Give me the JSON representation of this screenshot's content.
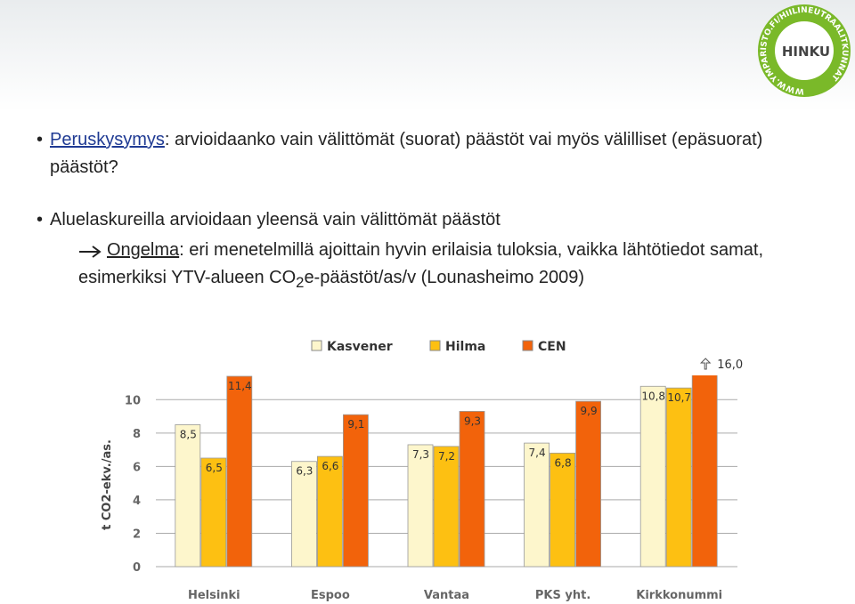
{
  "logo": {
    "name": "HINKU",
    "ring": "WWW.YMPARISTO.FI/HIILINEUTRAALITKUNNAT"
  },
  "bullet1": {
    "term": "Peruskysymys",
    "text": ": arvioidaanko vain välittömät (suorat) päästöt vai myös välilliset (epäsuorat) päästöt?"
  },
  "bullet2": {
    "text": "Aluelaskureilla arvioidaan yleensä vain välittömät päästöt",
    "term": "Ongelma",
    "text2": ": eri menetelmillä ajoittain hyvin erilaisia tuloksia, vaikka lähtötiedot samat, esimerkiksi YTV-alueen CO",
    "sub": "2",
    "text3": "e-päästöt/as/v (Lounasheimo 2009)"
  },
  "chart_data": {
    "type": "bar",
    "categories": [
      "Helsinki",
      "Espoo",
      "Vantaa",
      "PKS yht.",
      "Kirkkonummi"
    ],
    "series": [
      {
        "name": "Kasvener",
        "color": "#fdf6cc",
        "values": [
          8.5,
          6.3,
          7.3,
          7.4,
          10.8
        ],
        "value_labels": [
          "8,5",
          "6,3",
          "7,3",
          "7,4",
          "10,8"
        ]
      },
      {
        "name": "Hilma",
        "color": "#fdc012",
        "values": [
          6.5,
          6.6,
          7.2,
          6.8,
          10.7
        ],
        "value_labels": [
          "6,5",
          "6,6",
          "7,2",
          "6,8",
          "10,7"
        ]
      },
      {
        "name": "CEN",
        "color": "#f2630b",
        "values": [
          11.4,
          9.1,
          9.3,
          9.9,
          16.0
        ],
        "value_labels": [
          "11,4",
          "9,1",
          "9,3",
          "9,9",
          "16,0"
        ]
      }
    ],
    "y_label": "t CO2-ekv./as.",
    "ylim": [
      0,
      11.4
    ],
    "yticks": [
      0,
      2,
      4,
      6,
      8,
      10
    ],
    "grid": true,
    "legend": "top"
  }
}
